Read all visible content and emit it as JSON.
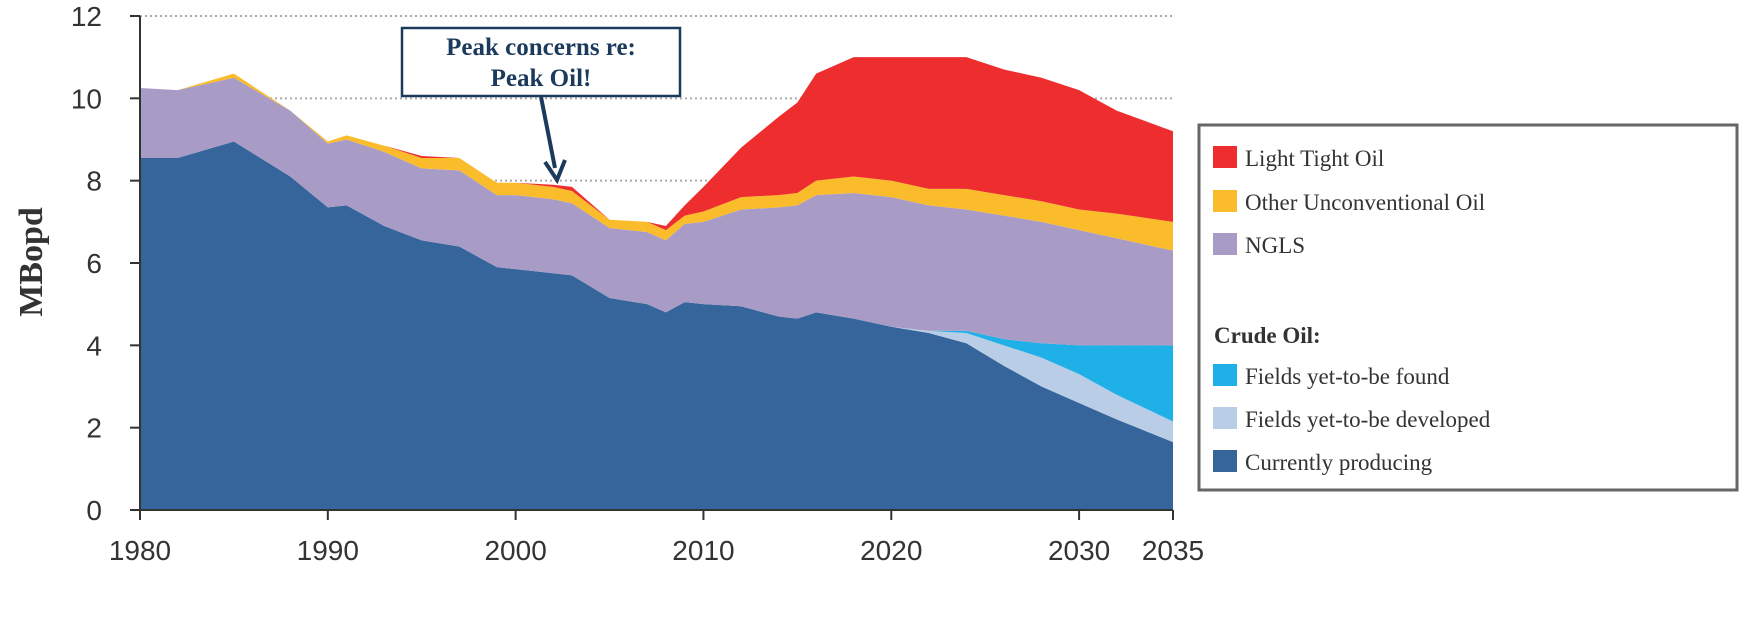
{
  "chart_data": {
    "type": "stacked_area",
    "y_label": "MBopd",
    "annotation": [
      "Peak concerns re:",
      "Peak  Oil!"
    ],
    "legend_heading": "Crude Oil:",
    "legend": "right",
    "grid": true,
    "xlim": [
      1980,
      2035
    ],
    "xticks": [
      1980,
      1990,
      2000,
      2010,
      2020,
      2030,
      2035
    ],
    "ylim": [
      0,
      12
    ],
    "yticks": [
      0,
      2,
      4,
      6,
      8,
      10,
      12
    ],
    "x": [
      1980,
      1982,
      1985,
      1988,
      1990,
      1991,
      1993,
      1995,
      1997,
      1999,
      2000,
      2002,
      2003,
      2005,
      2007,
      2008,
      2009,
      2010,
      2012,
      2014,
      2015,
      2016,
      2018,
      2020,
      2022,
      2024,
      2026,
      2028,
      2030,
      2032,
      2035
    ],
    "series": [
      {
        "name": "Currently producing",
        "color": "#35659a",
        "values": [
          8.55,
          8.55,
          8.95,
          8.1,
          7.35,
          7.4,
          6.9,
          6.55,
          6.4,
          5.9,
          5.85,
          5.75,
          5.7,
          5.15,
          5.0,
          4.8,
          5.05,
          5.0,
          4.95,
          4.7,
          4.65,
          4.8,
          4.65,
          4.45,
          4.3,
          4.05,
          3.5,
          3.0,
          2.6,
          2.2,
          1.65
        ]
      },
      {
        "name": "Fields yet-to-be developed",
        "color": "#b9cde6",
        "values": [
          0,
          0,
          0,
          0,
          0,
          0,
          0,
          0,
          0,
          0,
          0,
          0,
          0,
          0,
          0,
          0,
          0,
          0,
          0,
          0,
          0,
          0,
          0,
          0,
          0.05,
          0.25,
          0.5,
          0.7,
          0.7,
          0.6,
          0.5
        ]
      },
      {
        "name": "Fields yet-to-be found",
        "color": "#1eb0e6",
        "values": [
          0,
          0,
          0,
          0,
          0,
          0,
          0,
          0,
          0,
          0,
          0,
          0,
          0,
          0,
          0,
          0,
          0,
          0,
          0,
          0,
          0,
          0,
          0,
          0,
          0,
          0.05,
          0.15,
          0.35,
          0.7,
          1.2,
          1.85
        ]
      },
      {
        "name": "NGLS",
        "color": "#a89cc6",
        "values": [
          1.7,
          1.65,
          1.55,
          1.6,
          1.55,
          1.6,
          1.8,
          1.75,
          1.85,
          1.75,
          1.8,
          1.8,
          1.75,
          1.7,
          1.75,
          1.75,
          1.9,
          2.0,
          2.35,
          2.65,
          2.75,
          2.85,
          3.05,
          3.15,
          3.05,
          2.95,
          3.0,
          2.95,
          2.8,
          2.6,
          2.3
        ]
      },
      {
        "name": "Other Unconventional Oil",
        "color": "#fbbc2c",
        "values": [
          0,
          0,
          0.1,
          0,
          0.05,
          0.1,
          0.15,
          0.25,
          0.3,
          0.3,
          0.3,
          0.3,
          0.3,
          0.2,
          0.25,
          0.25,
          0.2,
          0.25,
          0.3,
          0.3,
          0.3,
          0.35,
          0.4,
          0.4,
          0.4,
          0.5,
          0.5,
          0.5,
          0.5,
          0.6,
          0.7
        ]
      },
      {
        "name": "Light Tight Oil",
        "color": "#ee2e2e",
        "values": [
          0,
          0,
          0,
          0,
          0,
          0,
          0,
          0.05,
          0,
          0,
          0,
          0.05,
          0.1,
          0,
          0,
          0.1,
          0.25,
          0.6,
          1.2,
          1.9,
          2.2,
          2.6,
          2.9,
          3.0,
          3.2,
          3.2,
          3.05,
          3.0,
          2.9,
          2.5,
          2.2
        ]
      }
    ]
  }
}
